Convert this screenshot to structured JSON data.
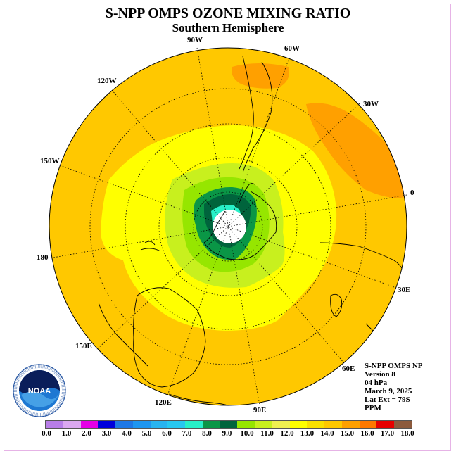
{
  "title": "S-NPP OMPS OZONE MIXING RATIO",
  "subtitle": "Southern Hemisphere",
  "longitude_labels": [
    "90W",
    "60W",
    "30W",
    "0",
    "30E",
    "60E",
    "90E",
    "120E",
    "150E",
    "180",
    "150W",
    "120W"
  ],
  "info": {
    "line1": "S-NPP OMPS NP",
    "line2": "Version 8",
    "line3": "04 hPa",
    "line4": "March 9, 2025",
    "line5": "Lat Ext = 79S",
    "line6": "PPM"
  },
  "logo_text": "NOAA",
  "logo_ring_text": "NATIONAL OCEANIC AND ATMOSPHERIC ADMINISTRATION · U.S. DEPARTMENT OF COMMERCE",
  "colorbar": {
    "colors": [
      "#b87ee8",
      "#dba8f0",
      "#e600e6",
      "#0000dc",
      "#1e78e6",
      "#1e96f0",
      "#28b4f0",
      "#28c8f0",
      "#28f0c8",
      "#0a9646",
      "#00643c",
      "#96e600",
      "#c8f01e",
      "#f0f050",
      "#ffff00",
      "#fae100",
      "#ffc800",
      "#ffa000",
      "#ff7800",
      "#e60000",
      "#8c5a3c"
    ],
    "tick_labels": [
      "0.0",
      "1.0",
      "2.0",
      "3.0",
      "4.0",
      "5.0",
      "6.0",
      "7.0",
      "8.0",
      "9.0",
      "10.0",
      "11.0",
      "12.0",
      "13.0",
      "14.0",
      "15.0",
      "16.0",
      "17.0",
      "18.0"
    ]
  }
}
